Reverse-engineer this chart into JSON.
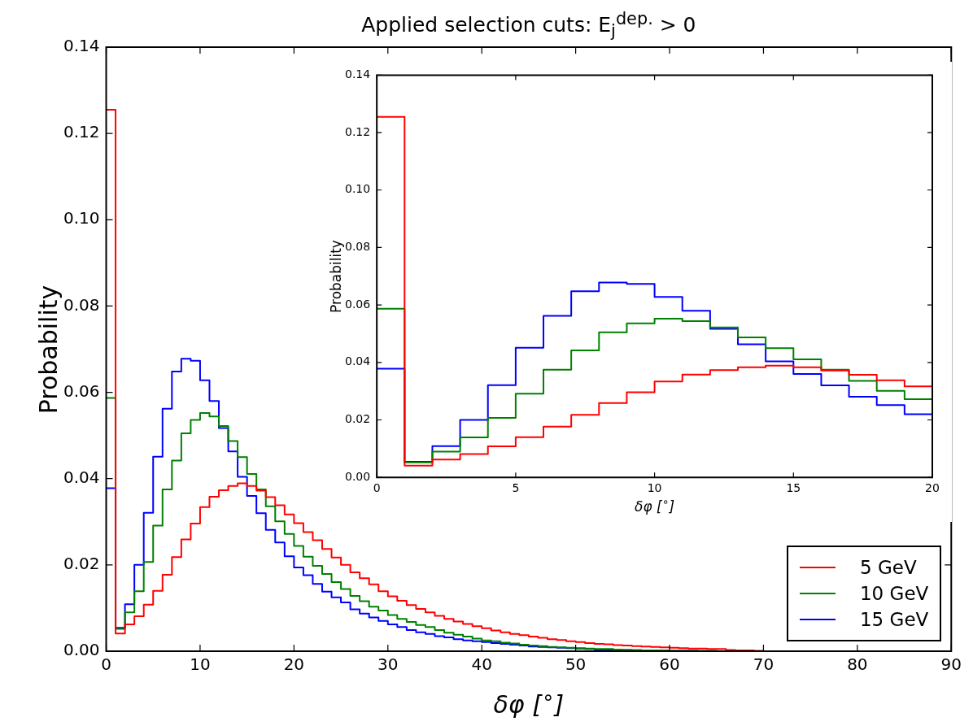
{
  "chart_data": [
    {
      "type": "histogram",
      "title": "Applied selection cuts: E$_{j}$$^{dep.}$ > 0",
      "xlabel": "δφ [$^{∘}$]",
      "ylabel": "Probability",
      "bins": [
        0,
        1,
        2,
        3,
        4,
        5,
        6,
        7,
        8,
        9,
        10,
        11,
        12,
        13,
        14,
        15,
        16,
        17,
        18,
        19,
        20,
        21,
        22,
        23,
        24,
        25,
        26,
        27,
        28,
        29,
        30,
        31,
        32,
        33,
        34,
        35,
        36,
        37,
        38,
        39,
        40,
        41,
        42,
        43,
        44,
        45,
        46,
        47,
        48,
        49,
        50,
        51,
        52,
        53,
        54,
        55,
        56,
        57,
        58,
        59,
        60,
        61,
        62,
        63,
        64,
        65,
        66,
        67,
        68,
        69,
        70,
        71,
        72,
        73,
        74,
        75,
        76,
        77,
        78,
        79,
        80,
        81,
        82,
        83,
        84,
        85,
        86,
        87,
        88,
        89,
        90
      ],
      "series": [
        {
          "name": "5 GeV",
          "color": "#ff0000",
          "values": [
            0.1255,
            0.0041,
            0.0062,
            0.0081,
            0.0108,
            0.014,
            0.0177,
            0.0218,
            0.0259,
            0.0296,
            0.0334,
            0.0358,
            0.0373,
            0.0383,
            0.0389,
            0.0383,
            0.0372,
            0.0357,
            0.0338,
            0.0317,
            0.0297,
            0.0276,
            0.0257,
            0.0237,
            0.0217,
            0.02,
            0.0183,
            0.0169,
            0.0155,
            0.0139,
            0.0127,
            0.0117,
            0.0107,
            0.0098,
            0.009,
            0.0082,
            0.0075,
            0.0069,
            0.0063,
            0.0058,
            0.0053,
            0.0048,
            0.0044,
            0.004,
            0.0037,
            0.0034,
            0.0031,
            0.0028,
            0.0026,
            0.0023,
            0.0021,
            0.0019,
            0.0017,
            0.0016,
            0.0014,
            0.0013,
            0.0012,
            0.0011,
            0.001,
            0.0009,
            0.0008,
            0.0007,
            0.0006,
            0.0006,
            0.0005,
            0.0005,
            0.0003,
            0.0002,
            0.0002,
            0.0001,
            0,
            0,
            0,
            0,
            0,
            0,
            0,
            0,
            0,
            0,
            0,
            0,
            0,
            0,
            0,
            0,
            0,
            0,
            0,
            0
          ]
        },
        {
          "name": "10 GeV",
          "color": "#008000",
          "values": [
            0.0587,
            0.0052,
            0.009,
            0.0139,
            0.0207,
            0.0291,
            0.0375,
            0.0442,
            0.0505,
            0.0536,
            0.0552,
            0.0544,
            0.0522,
            0.0487,
            0.045,
            0.0411,
            0.0375,
            0.0336,
            0.0301,
            0.0272,
            0.0244,
            0.0219,
            0.0198,
            0.0179,
            0.016,
            0.0144,
            0.0128,
            0.0116,
            0.0103,
            0.0094,
            0.0084,
            0.0075,
            0.0068,
            0.0061,
            0.0056,
            0.0049,
            0.0043,
            0.0038,
            0.0034,
            0.0029,
            0.0025,
            0.0023,
            0.002,
            0.0018,
            0.0015,
            0.0013,
            0.0012,
            0.001,
            0.0009,
            0.0008,
            0.0007,
            0.0006,
            0.0005,
            0.0005,
            0.0004,
            0.0003,
            0.0003,
            0.0002,
            0.0002,
            0.0002,
            0.0001,
            0.0001,
            0.0001,
            0.0001,
            0.0001,
            0,
            0,
            0,
            0,
            0,
            0,
            0,
            0,
            0,
            0,
            0,
            0,
            0,
            0,
            0,
            0,
            0,
            0,
            0,
            0,
            0,
            0,
            0,
            0,
            0
          ]
        },
        {
          "name": "15 GeV",
          "color": "#0000ff",
          "values": [
            0.0378,
            0.0054,
            0.0109,
            0.02,
            0.0321,
            0.0451,
            0.0562,
            0.0648,
            0.0678,
            0.0673,
            0.0628,
            0.058,
            0.0517,
            0.0463,
            0.0404,
            0.036,
            0.032,
            0.0281,
            0.0252,
            0.022,
            0.0194,
            0.0176,
            0.0156,
            0.0138,
            0.0125,
            0.0113,
            0.0097,
            0.0087,
            0.0078,
            0.007,
            0.0062,
            0.0056,
            0.0049,
            0.0044,
            0.004,
            0.0035,
            0.0032,
            0.0028,
            0.0025,
            0.0023,
            0.0021,
            0.0019,
            0.0017,
            0.0015,
            0.0013,
            0.0011,
            0.001,
            0.0009,
            0.0008,
            0.0007,
            0.0006,
            0.0005,
            0.0004,
            0.0004,
            0.0003,
            0.0003,
            0.0002,
            0.0002,
            0.0002,
            0.0001,
            0.0001,
            0.0001,
            0.0001,
            0,
            0,
            0,
            0,
            0,
            0,
            0,
            0,
            0,
            0,
            0,
            0,
            0,
            0,
            0,
            0,
            0,
            0,
            0,
            0,
            0,
            0,
            0,
            0,
            0,
            0,
            0
          ]
        }
      ],
      "xlim": [
        0,
        90
      ],
      "xticks": [
        0,
        10,
        20,
        30,
        40,
        50,
        60,
        70,
        80,
        90
      ],
      "ylim": [
        0,
        0.14
      ],
      "yticks": [
        {
          "value": 0,
          "label": "0.00"
        },
        {
          "value": 0.02,
          "label": "0.02"
        },
        {
          "value": 0.04,
          "label": "0.04"
        },
        {
          "value": 0.06,
          "label": "0.06"
        },
        {
          "value": 0.08,
          "label": "0.08"
        },
        {
          "value": 0.1,
          "label": "0.10"
        },
        {
          "value": 0.12,
          "label": "0.12"
        },
        {
          "value": 0.14,
          "label": "0.14"
        }
      ],
      "legend": "bottom right"
    },
    {
      "type": "histogram",
      "xlabel": "δφ [$^{∘}$]",
      "ylabel": "Probability",
      "bins": [
        0,
        1,
        2,
        3,
        4,
        5,
        6,
        7,
        8,
        9,
        10,
        11,
        12,
        13,
        14,
        15,
        16,
        17,
        18,
        19,
        20
      ],
      "series": [
        {
          "color": "#ff0000",
          "values": [
            0.1255,
            0.0041,
            0.0062,
            0.0081,
            0.0108,
            0.014,
            0.0177,
            0.0218,
            0.0259,
            0.0296,
            0.0334,
            0.0358,
            0.0373,
            0.0383,
            0.0389,
            0.0383,
            0.0372,
            0.0357,
            0.0338,
            0.0317
          ]
        },
        {
          "color": "#008000",
          "values": [
            0.0587,
            0.0052,
            0.009,
            0.0139,
            0.0207,
            0.0291,
            0.0375,
            0.0442,
            0.0505,
            0.0536,
            0.0552,
            0.0544,
            0.0522,
            0.0487,
            0.045,
            0.0411,
            0.0375,
            0.0336,
            0.0301,
            0.0272
          ]
        },
        {
          "color": "#0000ff",
          "values": [
            0.0378,
            0.0054,
            0.0109,
            0.02,
            0.0321,
            0.0451,
            0.0562,
            0.0648,
            0.0678,
            0.0673,
            0.0628,
            0.058,
            0.0517,
            0.0463,
            0.0404,
            0.036,
            0.032,
            0.0281,
            0.0252,
            0.022
          ]
        }
      ],
      "xlim": [
        0,
        20
      ],
      "xticks": [
        0,
        5,
        10,
        15,
        20
      ],
      "ylim": [
        0,
        0.14
      ],
      "yticks": [
        {
          "value": 0,
          "label": "0.00"
        },
        {
          "value": 0.02,
          "label": "0.02"
        },
        {
          "value": 0.04,
          "label": "0.04"
        },
        {
          "value": 0.06,
          "label": "0.06"
        },
        {
          "value": 0.08,
          "label": "0.08"
        },
        {
          "value": 0.1,
          "label": "0.10"
        },
        {
          "value": 0.12,
          "label": "0.12"
        },
        {
          "value": 0.14,
          "label": "0.14"
        }
      ]
    }
  ]
}
